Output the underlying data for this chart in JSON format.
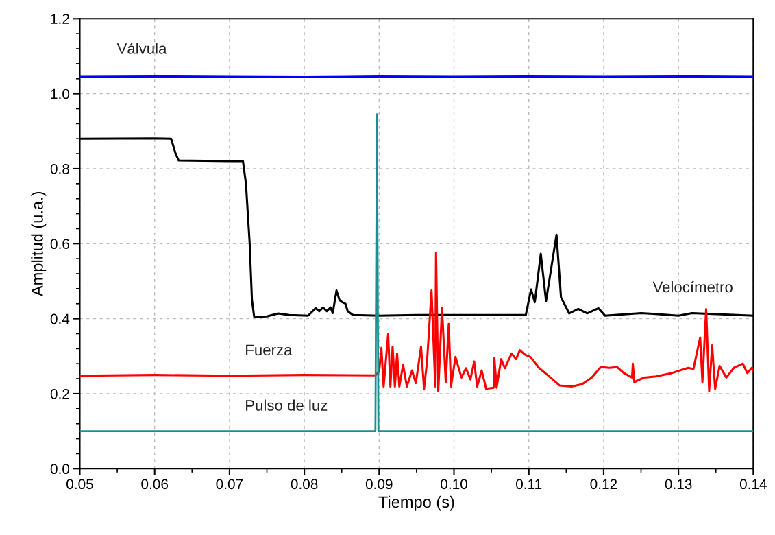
{
  "chart_data": {
    "type": "line",
    "xlabel": "Tiempo (s)",
    "ylabel": "Amplitud (u.a.)",
    "xlim": [
      0.05,
      0.14
    ],
    "ylim": [
      0,
      1.2
    ],
    "xticks": [
      {
        "value": 0.05,
        "label": "0.05"
      },
      {
        "value": 0.06,
        "label": "0.06"
      },
      {
        "value": 0.07,
        "label": "0.07"
      },
      {
        "value": 0.08,
        "label": "0.08"
      },
      {
        "value": 0.09,
        "label": "0.09"
      },
      {
        "value": 0.1,
        "label": "0.10"
      },
      {
        "value": 0.11,
        "label": "0.11"
      },
      {
        "value": 0.12,
        "label": "0.12"
      },
      {
        "value": 0.13,
        "label": "0.13"
      },
      {
        "value": 0.14,
        "label": "0.14"
      }
    ],
    "yticks": [
      {
        "value": 0,
        "label": "0.0"
      },
      {
        "value": 0.2,
        "label": "0.2"
      },
      {
        "value": 0.4,
        "label": "0.4"
      },
      {
        "value": 0.6,
        "label": "0.6"
      },
      {
        "value": 0.8,
        "label": "0.8"
      },
      {
        "value": 1.0,
        "label": "1.0"
      },
      {
        "value": 1.2,
        "label": "1.2"
      }
    ],
    "grid": true,
    "legend": false,
    "marker": "none",
    "line_style": "solid",
    "series": [
      {
        "name": "Válvula",
        "color": "#0000ff",
        "x": [
          0.05,
          0.06,
          0.07,
          0.08,
          0.09,
          0.1,
          0.11,
          0.12,
          0.13,
          0.14
        ],
        "values": [
          1.045,
          1.046,
          1.045,
          1.044,
          1.046,
          1.045,
          1.046,
          1.045,
          1.046,
          1.045
        ]
      },
      {
        "name": "Velocímetro",
        "color": "#000000",
        "x": [
          0.05,
          0.06,
          0.0622,
          0.0628,
          0.0632,
          0.07,
          0.0718,
          0.0722,
          0.0727,
          0.073,
          0.0733,
          0.075,
          0.0765,
          0.078,
          0.0805,
          0.0815,
          0.082,
          0.0825,
          0.083,
          0.0835,
          0.0838,
          0.0843,
          0.0847,
          0.085,
          0.0855,
          0.0858,
          0.0865,
          0.09,
          0.095,
          0.1,
          0.105,
          0.109,
          0.1096,
          0.1103,
          0.1108,
          0.1116,
          0.1123,
          0.1137,
          0.1143,
          0.1154,
          0.1166,
          0.1178,
          0.1193,
          0.1202,
          0.125,
          0.1266,
          0.13,
          0.1318,
          0.14
        ],
        "values": [
          0.88,
          0.881,
          0.88,
          0.84,
          0.822,
          0.82,
          0.82,
          0.76,
          0.6,
          0.45,
          0.405,
          0.406,
          0.414,
          0.41,
          0.408,
          0.428,
          0.42,
          0.43,
          0.42,
          0.43,
          0.415,
          0.475,
          0.45,
          0.445,
          0.44,
          0.42,
          0.41,
          0.408,
          0.41,
          0.41,
          0.41,
          0.41,
          0.41,
          0.478,
          0.444,
          0.573,
          0.447,
          0.624,
          0.457,
          0.414,
          0.426,
          0.414,
          0.428,
          0.408,
          0.415,
          0.413,
          0.408,
          0.415,
          0.408
        ]
      },
      {
        "name": "Fuerza",
        "color": "#ff0000",
        "x": [
          0.05,
          0.06,
          0.07,
          0.08,
          0.0895,
          0.09,
          0.0903,
          0.0906,
          0.0912,
          0.0915,
          0.0918,
          0.0921,
          0.0924,
          0.0927,
          0.0932,
          0.0937,
          0.0944,
          0.0949,
          0.0956,
          0.096,
          0.0964,
          0.097,
          0.0975,
          0.0976,
          0.0979,
          0.0984,
          0.0989,
          0.0993,
          0.0996,
          0.1002,
          0.101,
          0.1016,
          0.1022,
          0.1027,
          0.1031,
          0.1037,
          0.1043,
          0.1053,
          0.1054,
          0.1057,
          0.1063,
          0.1068,
          0.1077,
          0.1083,
          0.1088,
          0.1095,
          0.1102,
          0.1114,
          0.1129,
          0.1141,
          0.1157,
          0.1171,
          0.1184,
          0.1196,
          0.1208,
          0.1218,
          0.1227,
          0.1238,
          0.1239,
          0.1241,
          0.1254,
          0.127,
          0.1291,
          0.1313,
          0.132,
          0.1329,
          0.1332,
          0.1337,
          0.1341,
          0.1345,
          0.1349,
          0.1355,
          0.1364,
          0.1374,
          0.1386,
          0.1392,
          0.1398,
          0.14
        ],
        "values": [
          0.248,
          0.25,
          0.248,
          0.25,
          0.249,
          0.26,
          0.322,
          0.219,
          0.359,
          0.219,
          0.325,
          0.219,
          0.307,
          0.219,
          0.277,
          0.219,
          0.262,
          0.228,
          0.325,
          0.213,
          0.286,
          0.475,
          0.219,
          0.576,
          0.207,
          0.429,
          0.231,
          0.386,
          0.219,
          0.298,
          0.243,
          0.268,
          0.238,
          0.286,
          0.219,
          0.262,
          0.213,
          0.216,
          0.295,
          0.216,
          0.292,
          0.268,
          0.307,
          0.292,
          0.316,
          0.304,
          0.298,
          0.268,
          0.243,
          0.222,
          0.219,
          0.225,
          0.243,
          0.271,
          0.269,
          0.271,
          0.255,
          0.243,
          0.28,
          0.231,
          0.243,
          0.246,
          0.255,
          0.269,
          0.266,
          0.35,
          0.231,
          0.426,
          0.207,
          0.329,
          0.213,
          0.274,
          0.243,
          0.269,
          0.28,
          0.255,
          0.269,
          0.262
        ]
      },
      {
        "name": "Pulso de luz",
        "color": "#1a8f8f",
        "x": [
          0.05,
          0.07,
          0.0895,
          0.0897,
          0.0899,
          0.09,
          0.11,
          0.14
        ],
        "values": [
          0.1,
          0.1,
          0.1,
          0.945,
          0.1,
          0.1,
          0.1,
          0.1
        ]
      }
    ]
  }
}
